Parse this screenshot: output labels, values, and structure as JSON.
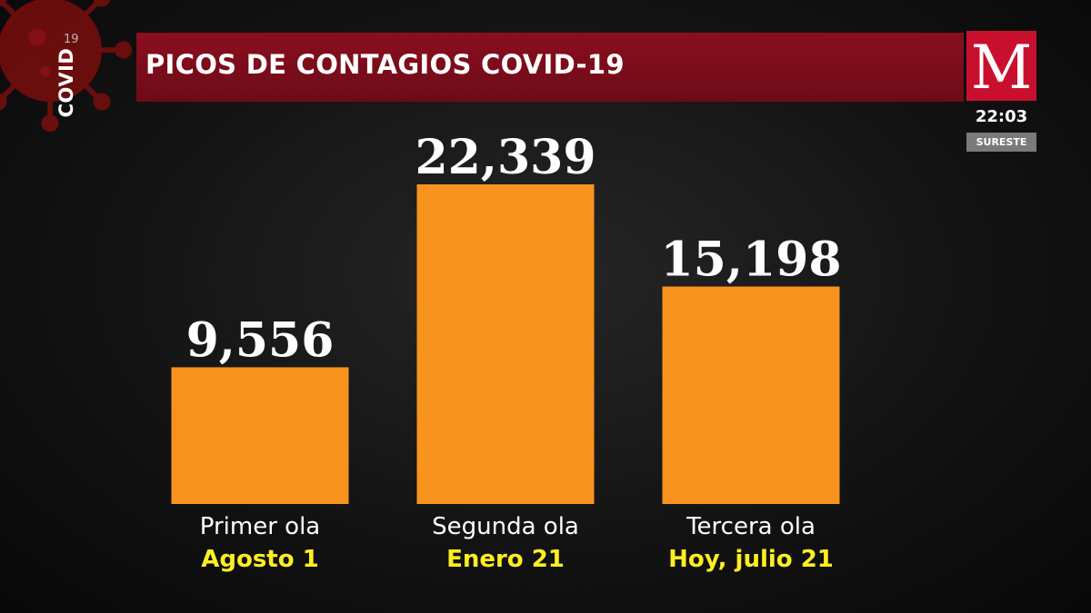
{
  "header": {
    "title": "PICOS DE CONTAGIOS COVID-19",
    "covid_label": "COVID",
    "covid_number": "19"
  },
  "channel": {
    "logo": "M",
    "time": "22:03",
    "region": "SURESTE"
  },
  "colors": {
    "bar": "#f7931e",
    "title_bar": "#8a0f1f",
    "date_text": "#ffee22",
    "logo_bg": "#c8102e"
  },
  "chart_data": {
    "type": "bar",
    "title": "PICOS DE CONTAGIOS COVID-19",
    "categories": [
      "Primer ola",
      "Segunda ola",
      "Tercera ola"
    ],
    "dates": [
      "Agosto 1",
      "Enero 21",
      "Hoy, julio 21"
    ],
    "values": [
      9556,
      22339,
      15198
    ],
    "value_labels": [
      "9,556",
      "22,339",
      "15,198"
    ],
    "grid": false,
    "legend": "none"
  }
}
